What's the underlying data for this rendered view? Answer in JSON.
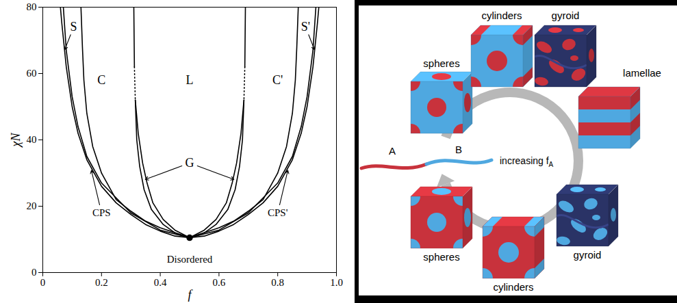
{
  "chart_data": {
    "type": "line",
    "x_label": "f",
    "y_label": "χN",
    "xlim": [
      0,
      1
    ],
    "ylim": [
      0,
      80
    ],
    "xticks": [
      0,
      0.2,
      0.4,
      0.6,
      0.8,
      {
        "value": 1,
        "label": "1.0"
      }
    ],
    "yticks": [
      0,
      20,
      40,
      60,
      80
    ],
    "color": "#000000",
    "series": [
      {
        "x": [
          0.06,
          0.065,
          0.08,
          0.1,
          0.12,
          0.15,
          0.2,
          0.25,
          0.3,
          0.35,
          0.4,
          0.45,
          0.5,
          0.55,
          0.6,
          0.65,
          0.7,
          0.75,
          0.8,
          0.85,
          0.88,
          0.9,
          0.92,
          0.935,
          0.94
        ],
        "values": [
          80,
          75,
          62,
          50,
          42,
          34,
          26,
          21,
          17.5,
          14.5,
          12.5,
          11,
          10.5,
          11,
          12.5,
          14.5,
          17.5,
          21,
          26,
          34,
          42,
          50,
          62,
          75,
          80
        ],
        "line_style": "solid"
      },
      {
        "x": [
          0.07,
          0.08,
          0.1,
          0.12,
          0.15,
          0.2,
          0.3,
          0.4,
          0.5,
          0.6,
          0.7,
          0.8,
          0.85,
          0.88,
          0.9,
          0.92,
          0.93
        ],
        "values": [
          80,
          67,
          53,
          44,
          35,
          27,
          18,
          12.8,
          10.5,
          12.8,
          18,
          27,
          35,
          44,
          53,
          67,
          80
        ],
        "line_style": "solid"
      },
      {
        "x": [
          0.13,
          0.135,
          0.14,
          0.15,
          0.17,
          0.2,
          0.25,
          0.3,
          0.35,
          0.4,
          0.5,
          0.6,
          0.65,
          0.7,
          0.75,
          0.8,
          0.83,
          0.85,
          0.86,
          0.865,
          0.87
        ],
        "values": [
          80,
          68,
          58,
          48,
          38,
          30,
          22,
          18.5,
          15.5,
          13.5,
          10.5,
          13.5,
          15.5,
          18.5,
          22,
          30,
          38,
          48,
          58,
          68,
          80
        ],
        "line_style": "solid"
      },
      {
        "x": [
          0.31,
          0.312
        ],
        "values": [
          80,
          62
        ],
        "line_style": "solid"
      },
      {
        "x": [
          0.312,
          0.315
        ],
        "values": [
          62,
          52
        ],
        "line_style": "dotted"
      },
      {
        "x": [
          0.315,
          0.32,
          0.33,
          0.345,
          0.37,
          0.41,
          0.45,
          0.5
        ],
        "values": [
          52,
          40,
          32,
          25,
          19,
          14.5,
          12,
          10.5
        ],
        "line_style": "solid"
      },
      {
        "x": [
          0.315,
          0.325,
          0.34,
          0.355,
          0.375,
          0.41,
          0.45,
          0.5
        ],
        "values": [
          52,
          42,
          33,
          27,
          21,
          16,
          12.8,
          10.5
        ],
        "line_style": "solid"
      },
      {
        "x": [
          0.69,
          0.688
        ],
        "values": [
          80,
          62
        ],
        "line_style": "solid"
      },
      {
        "x": [
          0.688,
          0.685
        ],
        "values": [
          62,
          52
        ],
        "line_style": "dotted"
      },
      {
        "x": [
          0.685,
          0.68,
          0.67,
          0.655,
          0.63,
          0.59,
          0.55,
          0.5
        ],
        "values": [
          52,
          40,
          32,
          25,
          19,
          14.5,
          12,
          10.5
        ],
        "line_style": "solid"
      },
      {
        "x": [
          0.685,
          0.675,
          0.66,
          0.645,
          0.625,
          0.59,
          0.55,
          0.5
        ],
        "values": [
          52,
          42,
          33,
          27,
          21,
          16,
          12.8,
          10.5
        ],
        "line_style": "solid"
      }
    ],
    "points": {
      "x": [
        0.5
      ],
      "values": [
        10.5
      ],
      "marker": "circle"
    },
    "annotations": [
      {
        "text": "S",
        "x": 0.105,
        "y": 74,
        "arrows": [
          [
            0.074,
            67
          ]
        ]
      },
      {
        "text": "C",
        "x": 0.2,
        "y": 58
      },
      {
        "text": "L",
        "x": 0.5,
        "y": 58
      },
      {
        "text": "C'",
        "x": 0.8,
        "y": 58
      },
      {
        "text": "S'",
        "x": 0.895,
        "y": 74,
        "arrows": [
          [
            0.926,
            67
          ]
        ]
      },
      {
        "text": "G",
        "x": 0.5,
        "y": 33,
        "arrows": [
          [
            0.347,
            28
          ],
          [
            0.653,
            28
          ]
        ]
      },
      {
        "text": "CPS",
        "x": 0.2,
        "y": 18,
        "arrows": [
          [
            0.165,
            31
          ]
        ]
      },
      {
        "text": "CPS'",
        "x": 0.8,
        "y": 18,
        "arrows": [
          [
            0.835,
            31
          ]
        ]
      },
      {
        "text": "Disordered",
        "x": 0.5,
        "y": 4
      }
    ]
  },
  "diagram": {
    "chain": [
      {
        "label": "A",
        "color": "#c8323c"
      },
      {
        "label": "B",
        "color": "#4fa8e0"
      }
    ],
    "cycle_label": {
      "text": "increasing f",
      "subscript": "A"
    },
    "morphologies": [
      {
        "label": "spheres",
        "colors": [
          "#4fa8e0",
          "#c8323c"
        ]
      },
      {
        "label": "cylinders",
        "colors": [
          "#4fa8e0",
          "#c8323c"
        ]
      },
      {
        "label": "gyroid",
        "colors": [
          "#2a3366",
          "#c8323c"
        ]
      },
      {
        "label": "lamellae",
        "colors": [
          "#4fa8e0",
          "#c8323c"
        ]
      },
      {
        "label": "gyroid",
        "colors": [
          "#2a3366",
          "#4fa8e0"
        ]
      },
      {
        "label": "cylinders",
        "colors": [
          "#c8323c",
          "#4fa8e0"
        ]
      },
      {
        "label": "spheres",
        "colors": [
          "#c8323c",
          "#4fa8e0"
        ]
      }
    ]
  }
}
